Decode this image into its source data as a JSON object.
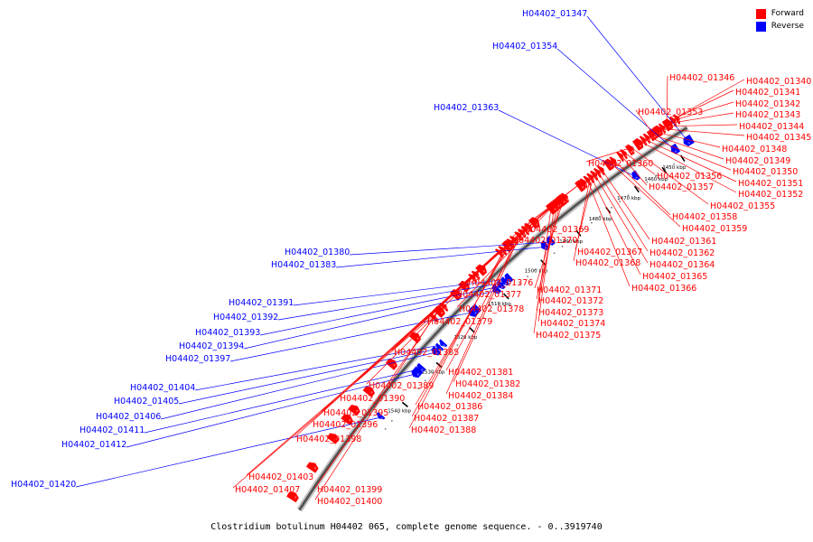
{
  "legend": {
    "forward_label": "Forward",
    "reverse_label": "Reverse",
    "forward_color": "#ff0000",
    "reverse_color": "#0000ff"
  },
  "caption": "Clostridium botulinum H04402 065, complete genome sequence. - 0..3919740",
  "ticks": [
    "1450 kbp",
    "1460 kbp",
    "1470 kbp",
    "1480 kbp",
    "1490 kbp",
    "1500 kbp",
    "1510 kbp",
    "1520 kbp",
    "1530 kbp",
    "1540 kbp"
  ],
  "reverse_genes": [
    "H04402_01347",
    "H04402_01354",
    "H04402_01363",
    "H04402_01380",
    "H04402_01383",
    "H04402_01391",
    "H04402_01392",
    "H04402_01393",
    "H04402_01394",
    "H04402_01397",
    "H04402_01404",
    "H04402_01405",
    "H04402_01406",
    "H04402_01411",
    "H04402_01412",
    "H04402_01420"
  ],
  "forward_genes": [
    "H04402_01340",
    "H04402_01341",
    "H04402_01342",
    "H04402_01343",
    "H04402_01344",
    "H04402_01345",
    "H04402_01346",
    "H04402_01348",
    "H04402_01349",
    "H04402_01350",
    "H04402_01351",
    "H04402_01352",
    "H04402_01353",
    "H04402_01355",
    "H04402_01356",
    "H04402_01357",
    "H04402_01358",
    "H04402_01359",
    "H04402_01360",
    "H04402_01361",
    "H04402_01362",
    "H04402_01364",
    "H04402_01365",
    "H04402_01366",
    "H04402_01367",
    "H04402_01368",
    "H04402_01369",
    "H04402_01370",
    "H04402_01371",
    "H04402_01372",
    "H04402_01373",
    "H04402_01374",
    "H04402_01375",
    "H04402_01376",
    "H04402_01377",
    "H04402_01378",
    "H04402_01379",
    "H04402_01381",
    "H04402_01382",
    "H04402_01384",
    "H04402_01385",
    "H04402_01386",
    "H04402_01387",
    "H04402_01388",
    "H04402_01389",
    "H04402_01390",
    "H04402_01395",
    "H04402_01396",
    "H04402_01398",
    "H04402_01399",
    "H04402_01400",
    "H04402_01403",
    "H04402_01407"
  ]
}
